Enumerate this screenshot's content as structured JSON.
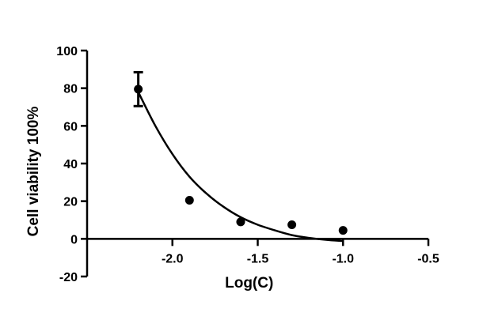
{
  "chart_data": {
    "type": "scatter",
    "xlabel": "Log(C)",
    "ylabel": "Cell viability  100%",
    "xlim": [
      -2.5,
      -0.5
    ],
    "ylim": [
      -20,
      100
    ],
    "x_ticks": [
      -2.0,
      -1.5,
      -1.0,
      -0.5
    ],
    "x_tick_labels": [
      "-2.0",
      "-1.5",
      "-1.0",
      "-0.5"
    ],
    "y_ticks": [
      -20,
      0,
      20,
      40,
      60,
      80,
      100
    ],
    "y_tick_labels": [
      "-20",
      "0",
      "20",
      "40",
      "60",
      "80",
      "100"
    ],
    "grid": false,
    "points": [
      {
        "x": -2.2,
        "y": 79.5,
        "err": 9
      },
      {
        "x": -1.9,
        "y": 20.5
      },
      {
        "x": -1.6,
        "y": 9
      },
      {
        "x": -1.3,
        "y": 7.5
      },
      {
        "x": -1.0,
        "y": 4.5
      }
    ],
    "fit_curve": {
      "x": [
        -2.2,
        -2.1,
        -2.0,
        -1.9,
        -1.8,
        -1.7,
        -1.6,
        -1.5,
        -1.4,
        -1.3,
        -1.2,
        -1.1,
        -1.0
      ],
      "y": [
        78,
        60,
        45,
        33,
        24,
        17,
        11.5,
        7.5,
        4.5,
        2,
        0.5,
        -0.5,
        -1.2
      ]
    },
    "colors": {
      "axis": "#000000",
      "points": "#000000",
      "curve": "#000000"
    }
  }
}
